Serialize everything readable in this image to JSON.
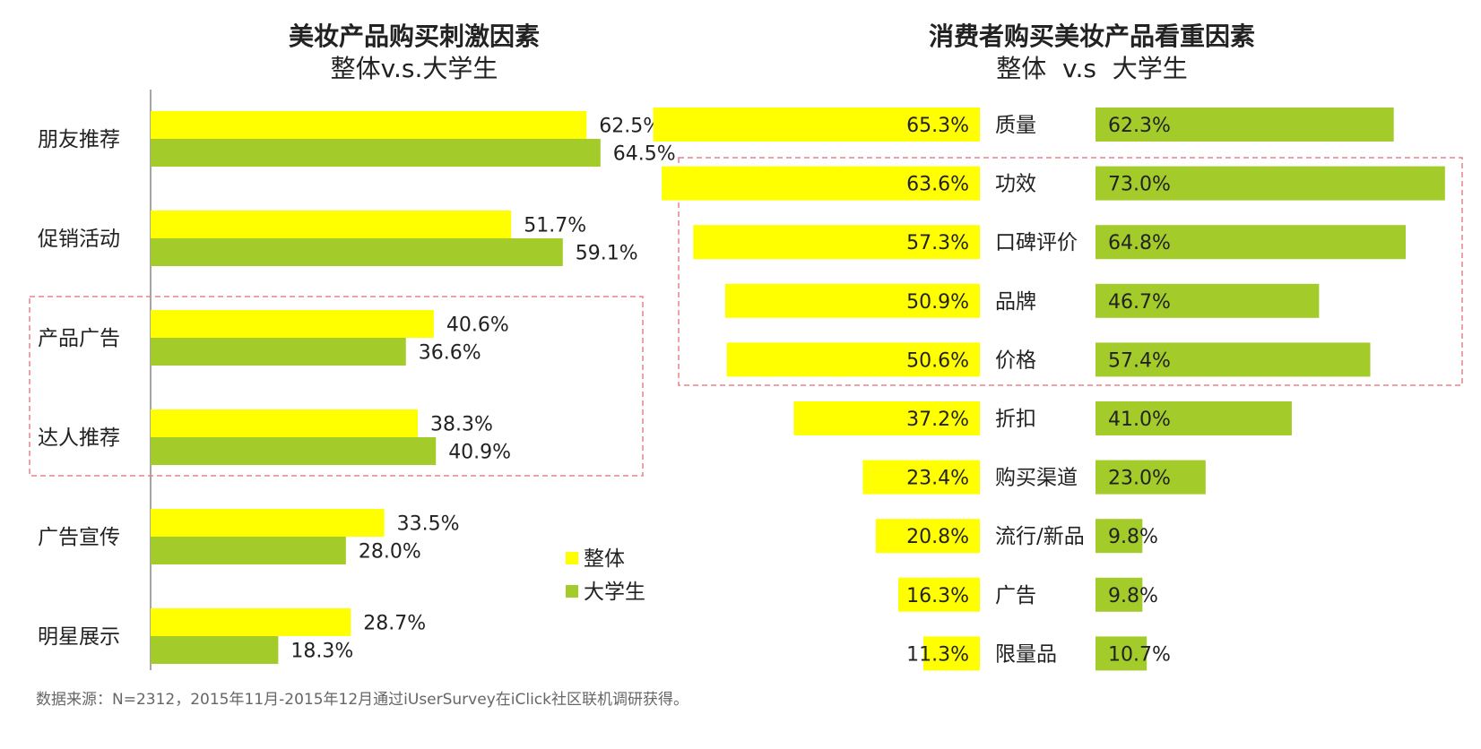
{
  "colors": {
    "overall": "#FFFF00",
    "college": "#A3CC2A",
    "highlight_border": "#E8838A",
    "axis": "#888888",
    "text": "#222222",
    "source_text": "#666666"
  },
  "legend": {
    "overall": "整体",
    "college": "大学生"
  },
  "source": "数据来源：N=2312，2015年11月-2015年12月通过iUserSurvey在iClick社区联机调研获得。",
  "chart_data": [
    {
      "type": "bar",
      "orientation": "horizontal",
      "title": "美妆产品购买刺激因素",
      "subtitle": "整体v.s.大学生",
      "categories": [
        "朋友推荐",
        "促销活动",
        "产品广告",
        "达人推荐",
        "广告宣传",
        "明星展示"
      ],
      "series": [
        {
          "name": "整体",
          "values": [
            62.5,
            51.7,
            40.6,
            38.3,
            33.5,
            28.7
          ]
        },
        {
          "name": "大学生",
          "values": [
            64.5,
            59.1,
            36.6,
            40.9,
            28.0,
            18.3
          ]
        }
      ],
      "value_labels": {
        "整体": [
          "62.5%",
          "51.7%",
          "40.6%",
          "38.3%",
          "33.5%",
          "28.7%"
        ],
        "大学生": [
          "64.5%",
          "59.1%",
          "36.6%",
          "40.9%",
          "28.0%",
          "18.3%"
        ]
      },
      "unit": "%",
      "xlim": [
        0,
        100
      ],
      "highlighted_categories": [
        "产品广告",
        "达人推荐"
      ]
    },
    {
      "type": "bar",
      "orientation": "butterfly",
      "title": "消费者购买美妆产品看重因素",
      "subtitle": "整体  v.s  大学生",
      "categories": [
        "质量",
        "功效",
        "口碑评价",
        "品牌",
        "价格",
        "折扣",
        "购买渠道",
        "流行/新品",
        "广告",
        "限量品"
      ],
      "series": [
        {
          "name": "整体",
          "values": [
            65.3,
            63.6,
            57.3,
            50.9,
            50.6,
            37.2,
            23.4,
            20.8,
            16.3,
            11.3
          ]
        },
        {
          "name": "大学生",
          "values": [
            62.3,
            73.0,
            64.8,
            46.7,
            57.4,
            41.0,
            23.0,
            9.8,
            9.8,
            10.7
          ]
        }
      ],
      "value_labels": {
        "整体": [
          "65.3%",
          "63.6%",
          "57.3%",
          "50.9%",
          "50.6%",
          "37.2%",
          "23.4%",
          "20.8%",
          "16.3%",
          "11.3%"
        ],
        "大学生": [
          "62.3%",
          "73.0%",
          "64.8%",
          "46.7%",
          "57.4%",
          "41.0%",
          "23.0%",
          "9.8%",
          "9.8%",
          "10.7%"
        ]
      },
      "unit": "%",
      "highlighted_categories": [
        "功效",
        "口碑评价",
        "品牌",
        "价格"
      ]
    }
  ]
}
